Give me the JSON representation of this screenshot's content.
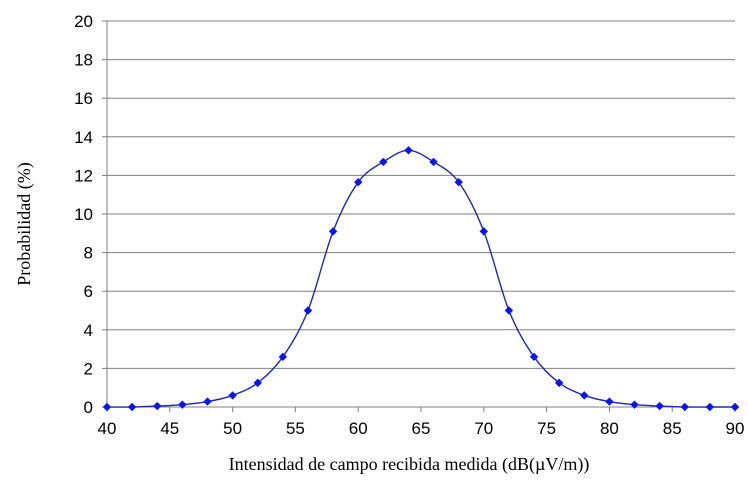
{
  "chart_data": {
    "type": "line",
    "title": "",
    "xlabel": "Intensidad de campo recibida medida (dB(µV/m))",
    "ylabel": "Probabilidad (%)",
    "xlim": [
      40,
      90
    ],
    "ylim": [
      0,
      20
    ],
    "x_ticks": [
      40,
      45,
      50,
      55,
      60,
      65,
      70,
      75,
      80,
      85,
      90
    ],
    "y_ticks": [
      0,
      2,
      4,
      6,
      8,
      10,
      12,
      14,
      16,
      18,
      20
    ],
    "grid": "horizontal",
    "legend": "none",
    "series": [
      {
        "color": "#1f2aa8",
        "marker_color": "#0a14f0",
        "marker": "diamond",
        "x": [
          40,
          42,
          44,
          46,
          48,
          50,
          52,
          54,
          56,
          58,
          60,
          62,
          64,
          66,
          68,
          70,
          72,
          74,
          76,
          78,
          80,
          82,
          84,
          86,
          88,
          90
        ],
        "y": [
          0,
          0,
          0.05,
          0.12,
          0.28,
          0.6,
          1.25,
          2.6,
          5.0,
          9.1,
          11.65,
          12.7,
          13.3,
          12.7,
          11.65,
          9.1,
          5.0,
          2.6,
          1.25,
          0.6,
          0.28,
          0.12,
          0.05,
          0,
          0,
          0
        ]
      }
    ]
  }
}
